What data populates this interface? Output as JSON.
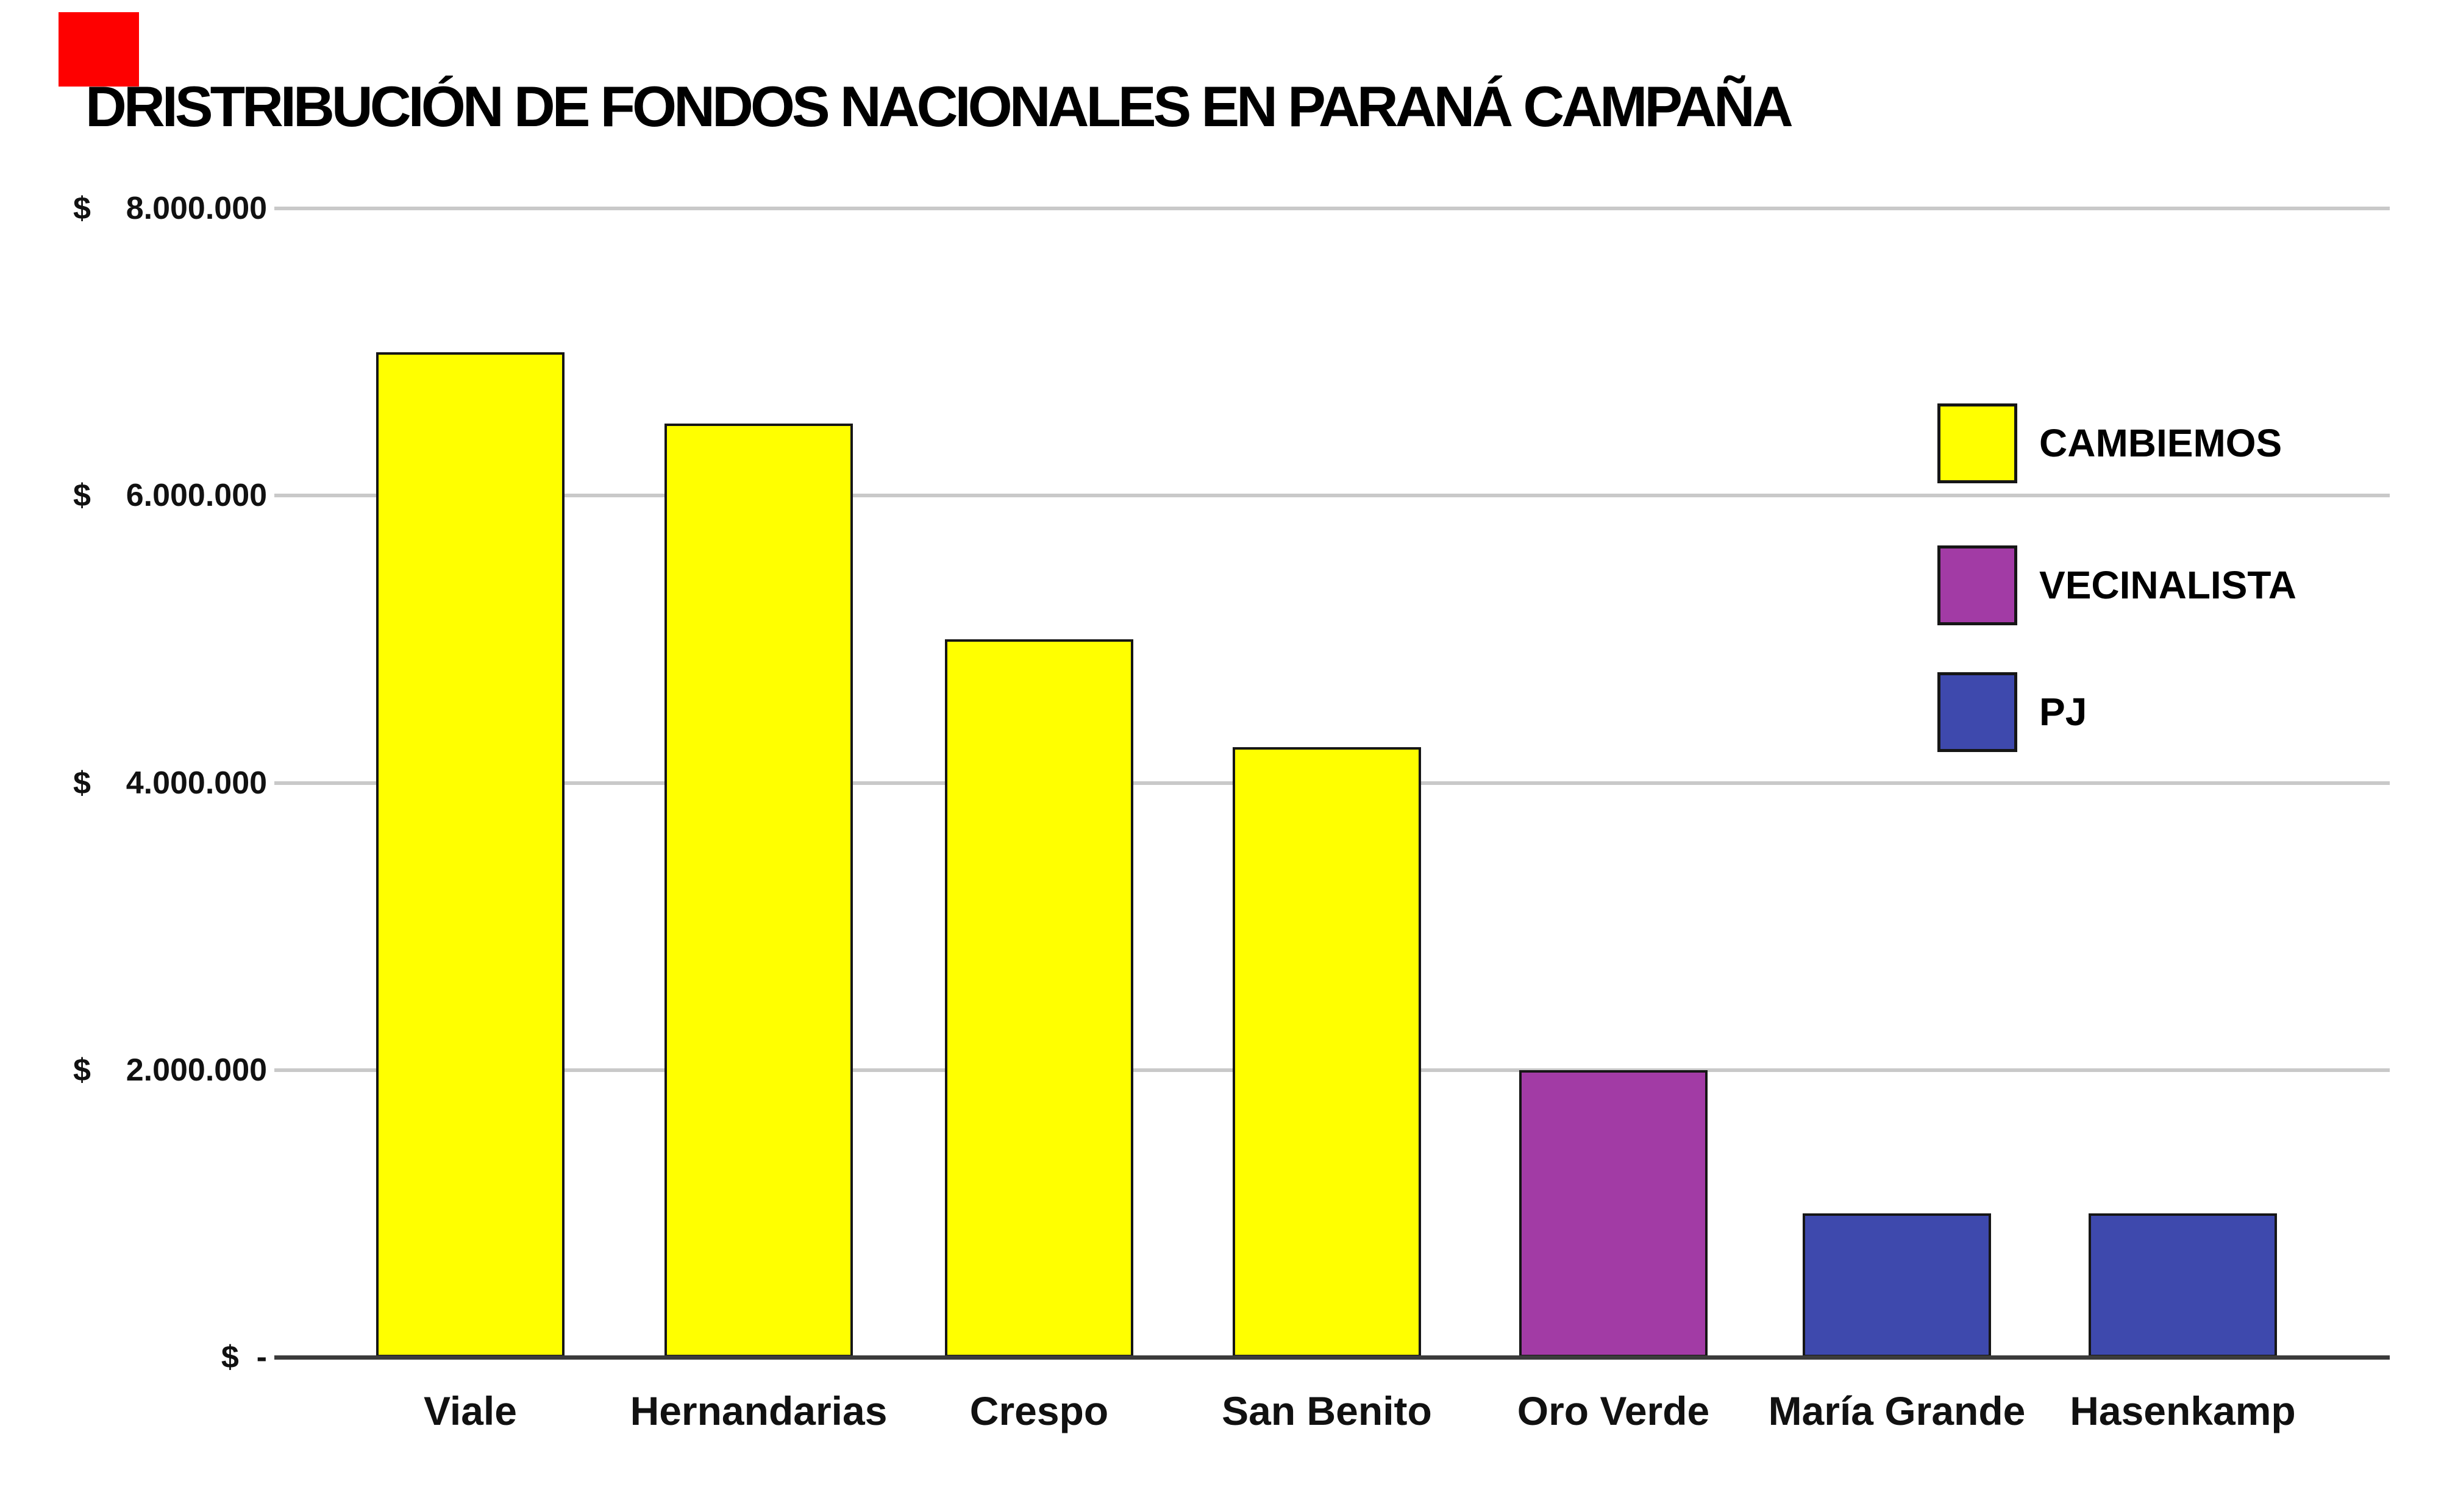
{
  "title": "DRISTRIBUCIÓN DE FONDOS NACIONALES EN PARANÁ CAMPAÑA",
  "chart_data": {
    "type": "bar",
    "title": "DRISTRIBUCIÓN DE FONDOS NACIONALES EN PARANÁ CAMPAÑA",
    "categories": [
      "Viale",
      "Hernandarias",
      "Crespo",
      "San Benito",
      "Oro Verde",
      "María Grande",
      "Hasenkamp"
    ],
    "values": [
      7000000,
      6500000,
      5000000,
      4250000,
      2000000,
      1000000,
      1000000
    ],
    "bar_parties": [
      "CAMBIEMOS",
      "CAMBIEMOS",
      "CAMBIEMOS",
      "CAMBIEMOS",
      "VECINALISTA",
      "PJ",
      "PJ"
    ],
    "xlabel": "",
    "ylabel": "",
    "ylim": [
      0,
      8000000
    ],
    "grid": true,
    "y_axis": {
      "tick_values": [
        8000000,
        6000000,
        4000000,
        2000000,
        0
      ],
      "tick_labels": [
        "$    8.000.000",
        "$    6.000.000",
        "$    4.000.000",
        "$    2.000.000",
        "$  -"
      ]
    },
    "legend": {
      "position": "right",
      "entries": [
        {
          "label": "CAMBIEMOS",
          "color": "#ffff00"
        },
        {
          "label": "VECINALISTA",
          "color": "#a23ba5"
        },
        {
          "label": "PJ",
          "color": "#3e49ad"
        }
      ]
    }
  }
}
